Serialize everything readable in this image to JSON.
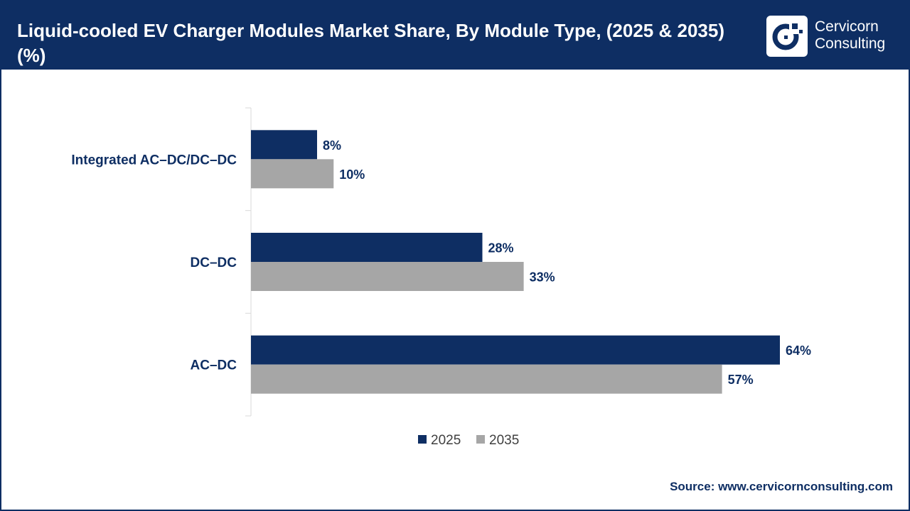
{
  "header": {
    "title": "Liquid-cooled EV Charger Modules Market Share, By Module Type, (2025 & 2035) (%)",
    "brand_line1": "Cervicorn",
    "brand_line2": "Consulting",
    "brand_color": "#0e2e63"
  },
  "chart_data": {
    "type": "bar",
    "orientation": "horizontal",
    "categories": [
      "Integrated AC–DC/DC–DC",
      "DC–DC",
      "AC–DC"
    ],
    "series": [
      {
        "name": "2025",
        "values": [
          8,
          28,
          64
        ],
        "labels": [
          "8%",
          "28%",
          "64%"
        ],
        "color": "#0e2e63"
      },
      {
        "name": "2035",
        "values": [
          10,
          33,
          57
        ],
        "labels": [
          "10%",
          "33%",
          "57%"
        ],
        "color": "#a6a6a6"
      }
    ],
    "xlim": [
      0,
      72
    ],
    "grid": false,
    "legend": "bottom"
  },
  "footer": {
    "source": "Source: www.cervicornconsulting.com"
  }
}
